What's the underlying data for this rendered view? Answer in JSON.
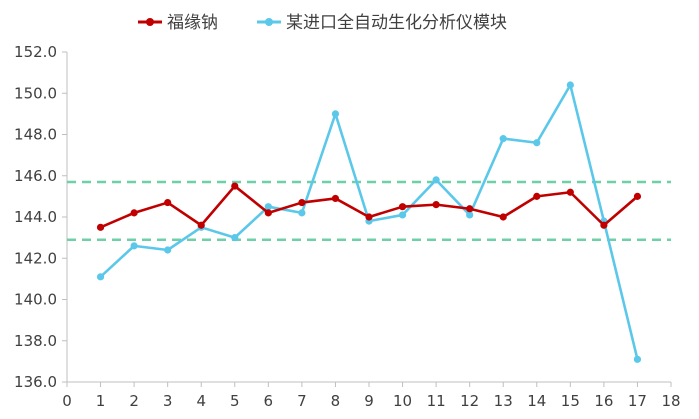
{
  "chart_data": {
    "type": "line",
    "x": [
      1,
      2,
      3,
      4,
      5,
      6,
      7,
      8,
      9,
      10,
      11,
      12,
      13,
      14,
      15,
      16,
      17
    ],
    "xlim": [
      0,
      18
    ],
    "xticks": [
      "0",
      "1",
      "2",
      "3",
      "4",
      "5",
      "6",
      "7",
      "8",
      "9",
      "10",
      "11",
      "12",
      "13",
      "14",
      "15",
      "16",
      "17",
      "18"
    ],
    "ylim": [
      136.0,
      152.0
    ],
    "yticks": [
      "136.0",
      "138.0",
      "140.0",
      "142.0",
      "144.0",
      "146.0",
      "148.0",
      "150.0",
      "152.0"
    ],
    "series": [
      {
        "name": "福缘钠",
        "color": "#c00000",
        "values": [
          143.5,
          144.2,
          144.7,
          143.6,
          145.5,
          144.2,
          144.7,
          144.9,
          144.0,
          144.5,
          144.6,
          144.4,
          144.0,
          145.0,
          145.2,
          143.6,
          145.0
        ]
      },
      {
        "name": "某进口全自动生化分析仪模块",
        "color": "#5bc8ea",
        "values": [
          141.1,
          142.6,
          142.4,
          143.5,
          143.0,
          144.5,
          144.2,
          149.0,
          143.8,
          144.1,
          145.8,
          144.1,
          147.8,
          147.6,
          150.4,
          143.8,
          137.1
        ]
      }
    ],
    "reference_lines": [
      {
        "y": 145.7,
        "color": "#6fd0a8",
        "style": "dashed"
      },
      {
        "y": 142.9,
        "color": "#6fd0a8",
        "style": "dashed"
      }
    ],
    "legend_position": "top"
  }
}
